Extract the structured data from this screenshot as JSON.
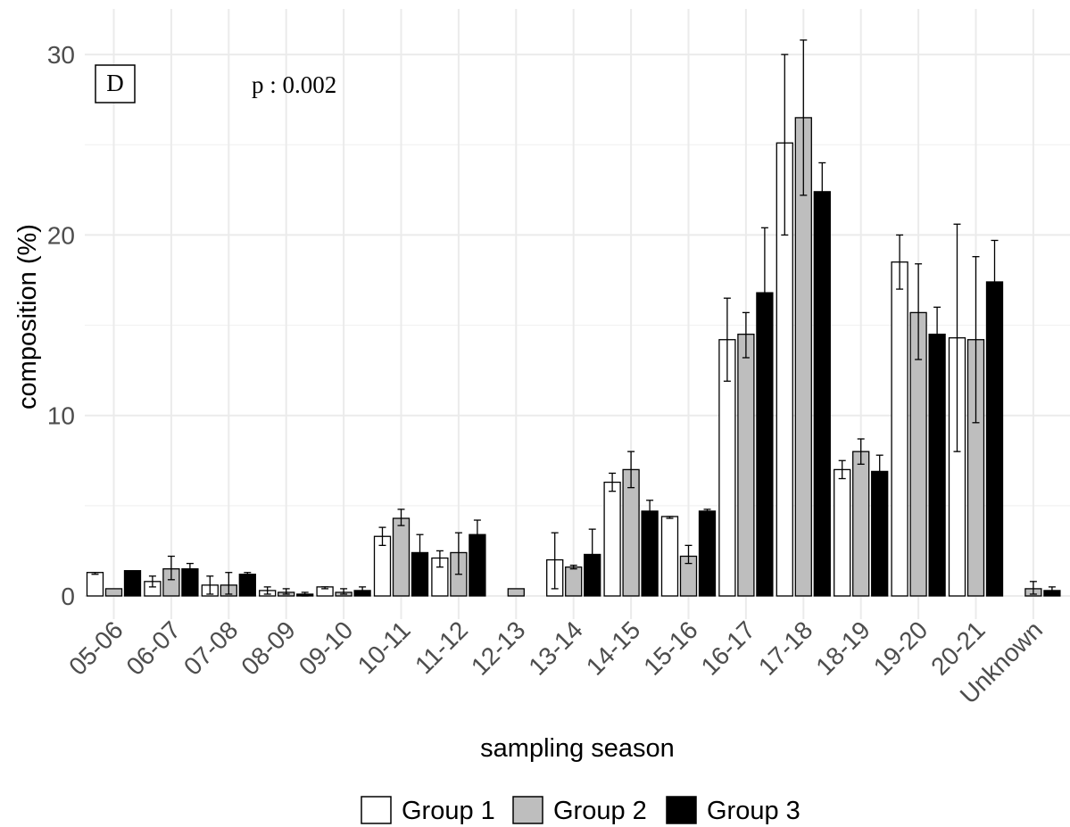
{
  "chart_data": {
    "type": "bar",
    "panel_label": "D",
    "annotation": "p : 0.002",
    "xlabel": "sampling season",
    "ylabel": "composition (%)",
    "ylim": [
      0,
      31
    ],
    "yticks": [
      0,
      10,
      20,
      30
    ],
    "grid": true,
    "legend_position": "bottom",
    "categories": [
      "05-06",
      "06-07",
      "07-08",
      "08-09",
      "09-10",
      "10-11",
      "11-12",
      "12-13",
      "13-14",
      "14-15",
      "15-16",
      "16-17",
      "17-18",
      "18-19",
      "19-20",
      "20-21",
      "Unknown"
    ],
    "series": [
      {
        "name": "Group 1",
        "color": "#ffffff",
        "values": [
          1.3,
          0.8,
          0.6,
          0.3,
          0.5,
          3.3,
          2.1,
          0.0,
          2.0,
          6.3,
          4.4,
          14.2,
          25.1,
          7.0,
          18.5,
          14.3,
          0.0
        ],
        "err_low": [
          1.2,
          0.5,
          0.1,
          0.1,
          0.4,
          2.8,
          1.6,
          0.0,
          0.4,
          5.8,
          4.3,
          11.9,
          20.0,
          6.5,
          17.0,
          8.0,
          0.0
        ],
        "err_high": [
          1.3,
          1.1,
          1.1,
          0.5,
          0.5,
          3.8,
          2.5,
          0.0,
          3.5,
          6.8,
          4.4,
          16.5,
          30.0,
          7.5,
          20.0,
          20.6,
          0.0
        ]
      },
      {
        "name": "Group 2",
        "color": "#bebebe",
        "values": [
          0.4,
          1.5,
          0.6,
          0.2,
          0.2,
          4.3,
          2.4,
          0.4,
          1.6,
          7.0,
          2.2,
          14.5,
          26.5,
          8.0,
          15.7,
          14.2,
          0.4
        ],
        "err_low": [
          0.4,
          0.9,
          0.1,
          0.1,
          0.1,
          3.9,
          1.2,
          0.4,
          1.5,
          6.0,
          1.8,
          13.2,
          22.2,
          7.3,
          13.1,
          9.6,
          0.1
        ],
        "err_high": [
          0.4,
          2.2,
          1.3,
          0.4,
          0.4,
          4.8,
          3.5,
          0.4,
          1.7,
          8.0,
          2.8,
          15.7,
          30.8,
          8.7,
          18.4,
          18.8,
          0.8
        ]
      },
      {
        "name": "Group 3",
        "color": "#000000",
        "values": [
          1.4,
          1.5,
          1.2,
          0.1,
          0.3,
          2.4,
          3.4,
          0.0,
          2.3,
          4.7,
          4.7,
          16.8,
          22.4,
          6.9,
          14.5,
          17.4,
          0.3
        ],
        "err_low": [
          1.4,
          1.2,
          1.1,
          0.0,
          0.1,
          1.5,
          2.6,
          0.0,
          1.0,
          4.2,
          4.6,
          13.2,
          20.8,
          5.9,
          12.9,
          15.2,
          0.1
        ],
        "err_high": [
          1.4,
          1.8,
          1.3,
          0.2,
          0.5,
          3.4,
          4.2,
          0.0,
          3.7,
          5.3,
          4.8,
          20.4,
          24.0,
          7.8,
          16.0,
          19.7,
          0.5
        ]
      }
    ]
  }
}
